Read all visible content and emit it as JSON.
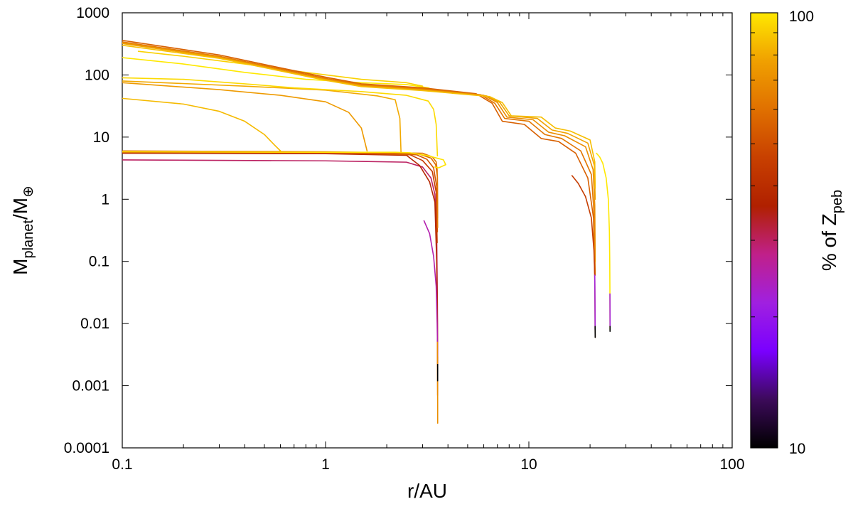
{
  "chart_data": {
    "type": "line",
    "xlabel": "r/AU",
    "ylabel": {
      "main": "M",
      "sub1": "planet",
      "slash": "/M",
      "sub2": "⊕"
    },
    "x_scale": "log",
    "y_scale": "log",
    "xlim": [
      0.1,
      100
    ],
    "ylim": [
      0.0001,
      1000
    ],
    "x_ticks": [
      {
        "value": 0.1,
        "label": "0.1"
      },
      {
        "value": 1,
        "label": "1"
      },
      {
        "value": 10,
        "label": "10"
      },
      {
        "value": 100,
        "label": "100"
      }
    ],
    "y_ticks": [
      {
        "value": 0.0001,
        "label": "0.0001"
      },
      {
        "value": 0.001,
        "label": "0.001"
      },
      {
        "value": 0.01,
        "label": "0.01"
      },
      {
        "value": 0.1,
        "label": "0.1"
      },
      {
        "value": 1,
        "label": "1"
      },
      {
        "value": 10,
        "label": "10"
      },
      {
        "value": 100,
        "label": "100"
      },
      {
        "value": 1000,
        "label": "1000"
      }
    ],
    "colorbar": {
      "label": {
        "prefix": "% of Z",
        "sub": "peb"
      },
      "min_label": "10",
      "max_label": "100",
      "min": 10,
      "max": 100,
      "scale": "log",
      "colors": [
        "#000000",
        "#3c0a5a",
        "#7a00ff",
        "#a020e0",
        "#c0208a",
        "#b02000",
        "#c84000",
        "#e07000",
        "#f0a000",
        "#ffe800"
      ]
    },
    "grid": false,
    "series": [
      {
        "color_value": 30,
        "points": [
          [
            0.1,
            4.3
          ],
          [
            1,
            4.15
          ],
          [
            2.5,
            3.95
          ],
          [
            3.0,
            3.3
          ],
          [
            3.3,
            2.2
          ],
          [
            3.45,
            1.2
          ],
          [
            3.52,
            0.3
          ],
          [
            3.55,
            0.02
          ],
          [
            3.56,
            0.002
          ]
        ]
      },
      {
        "color_value": 38,
        "points": [
          [
            0.1,
            5.5
          ],
          [
            1,
            5.4
          ],
          [
            2.5,
            5.1
          ],
          [
            2.9,
            3.5
          ],
          [
            3.25,
            1.9
          ],
          [
            3.45,
            0.9
          ],
          [
            3.52,
            0.1
          ],
          [
            3.55,
            0.01
          ],
          [
            3.56,
            0.0007
          ]
        ]
      },
      {
        "color_value": 45,
        "points": [
          [
            0.1,
            5.6
          ],
          [
            1,
            5.5
          ],
          [
            2.6,
            5.2
          ],
          [
            3.0,
            4.2
          ],
          [
            3.35,
            2.8
          ],
          [
            3.5,
            1.3
          ],
          [
            3.54,
            0.2
          ]
        ]
      },
      {
        "color_value": 52,
        "points": [
          [
            0.1,
            5.8
          ],
          [
            1,
            5.6
          ],
          [
            2.8,
            5.2
          ],
          [
            3.15,
            4.4
          ],
          [
            3.4,
            3.2
          ],
          [
            3.52,
            1.6
          ],
          [
            3.55,
            0.3
          ]
        ]
      },
      {
        "color_value": 58,
        "points": [
          [
            0.1,
            5.9
          ],
          [
            1,
            5.7
          ],
          [
            2.9,
            5.3
          ],
          [
            3.3,
            4.6
          ],
          [
            3.48,
            3.6
          ],
          [
            3.55,
            2.3
          ],
          [
            3.56,
            0.5
          ]
        ]
      },
      {
        "color_value": 62,
        "points": [
          [
            0.1,
            6.0
          ],
          [
            1,
            5.8
          ],
          [
            3.0,
            5.5
          ],
          [
            3.35,
            4.8
          ],
          [
            3.5,
            4.0
          ],
          [
            3.54,
            3.0
          ],
          [
            3.55,
            1.5
          ],
          [
            3.56,
            0.35
          ]
        ]
      },
      {
        "color_value": 98,
        "points": [
          [
            0.1,
            5.8
          ],
          [
            1,
            5.7
          ],
          [
            2.2,
            5.7
          ],
          [
            2.6,
            5.6
          ],
          [
            3.2,
            5.0
          ],
          [
            3.8,
            4.3
          ],
          [
            3.9,
            3.6
          ],
          [
            3.6,
            3.2
          ],
          [
            3.45,
            3.3
          ]
        ]
      },
      {
        "color_value": 25,
        "points": [
          [
            3.05,
            0.45
          ],
          [
            3.25,
            0.28
          ],
          [
            3.4,
            0.12
          ],
          [
            3.5,
            0.04
          ],
          [
            3.54,
            0.01
          ],
          [
            3.56,
            0.003
          ]
        ]
      },
      {
        "color_value": 70,
        "points": [
          [
            3.55,
            0.005
          ],
          [
            3.56,
            0.0005
          ],
          [
            3.56,
            0.00025
          ]
        ]
      },
      {
        "color_value": 85,
        "points": [
          [
            0.1,
            42
          ],
          [
            0.2,
            34
          ],
          [
            0.3,
            26
          ],
          [
            0.4,
            18
          ],
          [
            0.5,
            11
          ],
          [
            0.56,
            7.5
          ],
          [
            0.6,
            6.0
          ]
        ]
      },
      {
        "color_value": 75,
        "points": [
          [
            0.1,
            75
          ],
          [
            0.3,
            58
          ],
          [
            0.6,
            47
          ],
          [
            1.0,
            37
          ],
          [
            1.3,
            25
          ],
          [
            1.5,
            14
          ],
          [
            1.6,
            6.0
          ]
        ]
      },
      {
        "color_value": 80,
        "points": [
          [
            0.1,
            80
          ],
          [
            0.4,
            66
          ],
          [
            1.0,
            57
          ],
          [
            1.8,
            46
          ],
          [
            2.2,
            40
          ],
          [
            2.32,
            20
          ],
          [
            2.35,
            5.8
          ]
        ]
      },
      {
        "color_value": 95,
        "points": [
          [
            0.1,
            90
          ],
          [
            0.2,
            85
          ],
          [
            0.4,
            72
          ],
          [
            0.7,
            62
          ],
          [
            1.5,
            54
          ],
          [
            2.5,
            47
          ],
          [
            3.2,
            38
          ],
          [
            3.4,
            28
          ],
          [
            3.5,
            16
          ],
          [
            3.55,
            5.0
          ]
        ]
      },
      {
        "color_value": 100,
        "points": [
          [
            0.1,
            190
          ],
          [
            0.2,
            150
          ],
          [
            0.4,
            110
          ],
          [
            0.8,
            85
          ],
          [
            1.5,
            75
          ],
          [
            2.5,
            70
          ],
          [
            3.2,
            62
          ],
          [
            3.5,
            55
          ]
        ]
      },
      {
        "color_value": 92,
        "points": [
          [
            0.12,
            240
          ],
          [
            0.2,
            200
          ],
          [
            0.4,
            150
          ],
          [
            0.8,
            110
          ],
          [
            1.5,
            85
          ],
          [
            2.5,
            75
          ],
          [
            3.0,
            66
          ]
        ]
      },
      {
        "color_value": 55,
        "points": [
          [
            0.1,
            360
          ],
          [
            0.3,
            210
          ],
          [
            0.6,
            130
          ],
          [
            1.0,
            92
          ],
          [
            1.5,
            72
          ],
          [
            3.0,
            62
          ],
          [
            5.5,
            50
          ],
          [
            6.6,
            35
          ],
          [
            7.4,
            18
          ],
          [
            9.5,
            16
          ],
          [
            11.5,
            9.5
          ],
          [
            14,
            8.5
          ],
          [
            17,
            5.5
          ],
          [
            19.5,
            2.2
          ],
          [
            20.8,
            0.5
          ],
          [
            21.1,
            0.05
          ],
          [
            21.2,
            0.006
          ]
        ]
      },
      {
        "color_value": 62,
        "points": [
          [
            0.1,
            340
          ],
          [
            0.3,
            200
          ],
          [
            0.6,
            125
          ],
          [
            1.0,
            88
          ],
          [
            1.5,
            70
          ],
          [
            3.0,
            60
          ],
          [
            5.8,
            48
          ],
          [
            6.8,
            35
          ],
          [
            7.6,
            20
          ],
          [
            10,
            18
          ],
          [
            12,
            11
          ],
          [
            14.5,
            9.5
          ],
          [
            18,
            6
          ],
          [
            20.3,
            2.5
          ],
          [
            21.0,
            0.5
          ],
          [
            21.2,
            0.06
          ]
        ]
      },
      {
        "color_value": 70,
        "points": [
          [
            0.1,
            330
          ],
          [
            0.3,
            195
          ],
          [
            0.6,
            120
          ],
          [
            1.0,
            85
          ],
          [
            1.5,
            68
          ],
          [
            3.0,
            58
          ],
          [
            6.0,
            47
          ],
          [
            7.0,
            36
          ],
          [
            7.8,
            21
          ],
          [
            10.5,
            19
          ],
          [
            12.5,
            12
          ],
          [
            15,
            10.5
          ],
          [
            19,
            7
          ],
          [
            20.7,
            3
          ],
          [
            21.1,
            0.8
          ],
          [
            21.2,
            0.1
          ]
        ]
      },
      {
        "color_value": 78,
        "points": [
          [
            0.1,
            320
          ],
          [
            0.3,
            190
          ],
          [
            0.6,
            118
          ],
          [
            1.0,
            84
          ],
          [
            1.5,
            66
          ],
          [
            3.0,
            57
          ],
          [
            6.2,
            46
          ],
          [
            7.2,
            36
          ],
          [
            8.0,
            22
          ],
          [
            11,
            20
          ],
          [
            13,
            13
          ],
          [
            15.5,
            11.5
          ],
          [
            19.5,
            8
          ],
          [
            21.0,
            3.5
          ],
          [
            21.2,
            1.0
          ]
        ]
      },
      {
        "color_value": 86,
        "points": [
          [
            0.1,
            300
          ],
          [
            0.3,
            185
          ],
          [
            0.6,
            116
          ],
          [
            1.0,
            82
          ],
          [
            1.5,
            65
          ],
          [
            3.0,
            56
          ],
          [
            6.4,
            45
          ],
          [
            7.4,
            36
          ],
          [
            8.2,
            22
          ],
          [
            11.5,
            21
          ],
          [
            13.5,
            14
          ],
          [
            16,
            12.5
          ],
          [
            20,
            9
          ],
          [
            21.1,
            4
          ],
          [
            21.2,
            1.5
          ]
        ]
      },
      {
        "color_value": 45,
        "points": [
          [
            16.3,
            2.4
          ],
          [
            17.5,
            1.8
          ],
          [
            19,
            1.1
          ],
          [
            20.3,
            0.5
          ],
          [
            20.9,
            0.15
          ],
          [
            21.1,
            0.06
          ]
        ]
      },
      {
        "color_value": 22,
        "points": [
          [
            21.1,
            0.06
          ],
          [
            21.15,
            0.02
          ],
          [
            21.18,
            0.008
          ]
        ]
      },
      {
        "color_value": 10,
        "points": [
          [
            21.18,
            0.009
          ],
          [
            21.2,
            0.006
          ]
        ]
      },
      {
        "color_value": 100,
        "points": [
          [
            21.5,
            5.5
          ],
          [
            22.3,
            4.8
          ],
          [
            23.1,
            3.8
          ],
          [
            24.0,
            2.2
          ],
          [
            24.6,
            1.0
          ],
          [
            24.9,
            0.3
          ],
          [
            25.0,
            0.1
          ],
          [
            25.05,
            0.03
          ],
          [
            25.08,
            0.008
          ]
        ]
      },
      {
        "color_value": 22,
        "points": [
          [
            25.05,
            0.03
          ],
          [
            25.08,
            0.009
          ]
        ]
      },
      {
        "color_value": 10,
        "points": [
          [
            25.08,
            0.009
          ],
          [
            25.08,
            0.0075
          ]
        ]
      },
      {
        "color_value": 10,
        "points": [
          [
            3.56,
            0.0022
          ],
          [
            3.56,
            0.0012
          ]
        ]
      }
    ]
  }
}
